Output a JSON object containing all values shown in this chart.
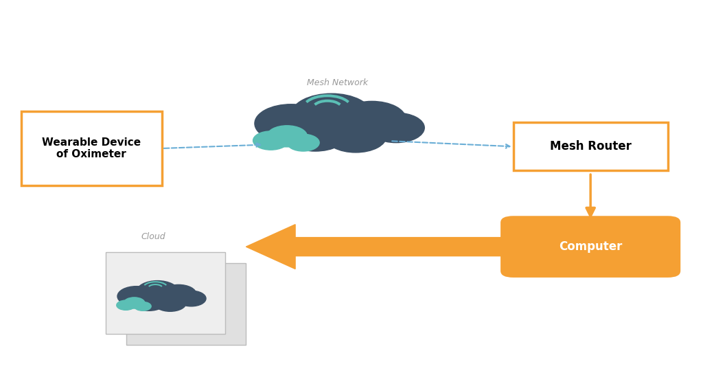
{
  "bg_color": "#ffffff",
  "orange": "#F5A033",
  "dark_blue_grey": "#3D5166",
  "teal": "#5BBFB5",
  "dashed_arrow_color": "#6AAED6",
  "wearable_label": "Wearable Device\nof Oximeter",
  "router_label": "Mesh Router",
  "computer_label": "Computer",
  "mesh_network_label": "Mesh Network",
  "cloud_label": "Cloud"
}
